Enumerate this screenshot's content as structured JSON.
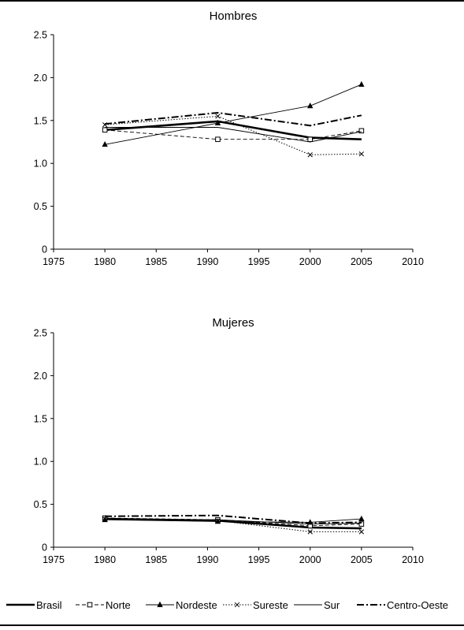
{
  "chart_data": [
    {
      "type": "line",
      "title": "Hombres",
      "xlabel": "",
      "ylabel": "",
      "xlim": [
        1975,
        2010
      ],
      "ylim": [
        0,
        2.5
      ],
      "x_ticks": [
        "1975",
        "1980",
        "1985",
        "1990",
        "1995",
        "2000",
        "2005",
        "2010"
      ],
      "y_ticks": [
        "0",
        "0.5",
        "1.0",
        "1.5",
        "2.0",
        "2.5"
      ],
      "grid": false,
      "x": [
        1980,
        1991,
        2000,
        2005
      ],
      "series": [
        {
          "name": "Brasil",
          "values": [
            1.39,
            1.49,
            1.3,
            1.28
          ]
        },
        {
          "name": "Norte",
          "values": [
            1.39,
            1.28,
            1.28,
            1.38
          ]
        },
        {
          "name": "Nordeste",
          "values": [
            1.22,
            1.47,
            1.67,
            1.92
          ]
        },
        {
          "name": "Sureste",
          "values": [
            1.45,
            1.55,
            1.1,
            1.11
          ]
        },
        {
          "name": "Sur",
          "values": [
            1.42,
            1.42,
            1.25,
            1.37
          ]
        },
        {
          "name": "Centro-Oeste",
          "values": [
            1.46,
            1.59,
            1.44,
            1.56
          ]
        }
      ]
    },
    {
      "type": "line",
      "title": "Mujeres",
      "xlabel": "",
      "ylabel": "",
      "xlim": [
        1975,
        2010
      ],
      "ylim": [
        0,
        2.5
      ],
      "x_ticks": [
        "1975",
        "1980",
        "1985",
        "1990",
        "1995",
        "2000",
        "2005",
        "2010"
      ],
      "y_ticks": [
        "0",
        "0.5",
        "1.0",
        "1.5",
        "2.0",
        "2.5"
      ],
      "grid": false,
      "x": [
        1980,
        1991,
        2000,
        2005
      ],
      "series": [
        {
          "name": "Brasil",
          "values": [
            0.33,
            0.31,
            0.23,
            0.22
          ]
        },
        {
          "name": "Norte",
          "values": [
            0.34,
            0.32,
            0.25,
            0.27
          ]
        },
        {
          "name": "Nordeste",
          "values": [
            0.32,
            0.3,
            0.29,
            0.33
          ]
        },
        {
          "name": "Sureste",
          "values": [
            0.33,
            0.31,
            0.18,
            0.18
          ]
        },
        {
          "name": "Sur",
          "values": [
            0.33,
            0.32,
            0.27,
            0.28
          ]
        },
        {
          "name": "Centro-Oeste",
          "values": [
            0.36,
            0.37,
            0.28,
            0.29
          ]
        }
      ]
    }
  ],
  "legend": {
    "placement": "bottom",
    "items": [
      "Brasil",
      "Norte",
      "Nordeste",
      "Sureste",
      "Sur",
      "Centro-Oeste"
    ]
  },
  "series_styles": {
    "Brasil": {
      "color": "#000000",
      "marker": "none",
      "dash": "solid-thick"
    },
    "Norte": {
      "color": "#000000",
      "marker": "square-open",
      "dash": "dashed"
    },
    "Nordeste": {
      "color": "#000000",
      "marker": "triangle",
      "dash": "solid-thin"
    },
    "Sureste": {
      "color": "#000000",
      "marker": "x",
      "dash": "dotted"
    },
    "Sur": {
      "color": "#000000",
      "marker": "none",
      "dash": "solid-thin"
    },
    "Centro-Oeste": {
      "color": "#000000",
      "marker": "none",
      "dash": "dash-dot-thick"
    }
  }
}
